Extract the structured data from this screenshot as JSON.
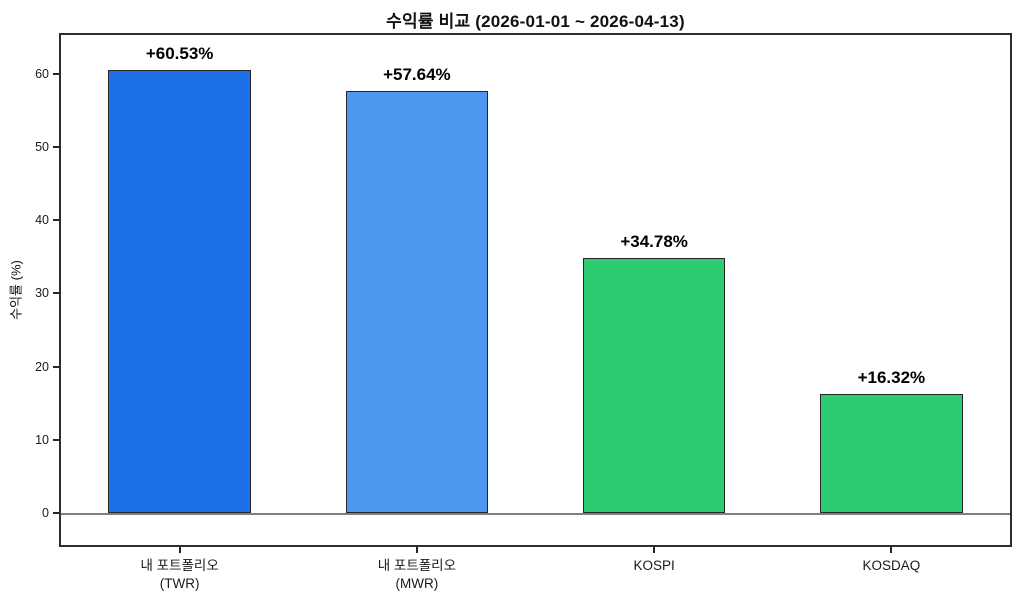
{
  "page": {
    "background": "#ffffff"
  },
  "chart_data": {
    "type": "bar",
    "title": "수익률 비교 (2026-01-01 ~ 2026-04-13)",
    "ylabel": "수익률 (%)",
    "xlabel": "",
    "categories": [
      "내 포트폴리오\n(TWR)",
      "내 포트폴리오\n(MWR)",
      "KOSPI",
      "KOSDAQ"
    ],
    "values": [
      60.53,
      57.64,
      34.78,
      16.32
    ],
    "value_labels": [
      "+60.53%",
      "+57.64%",
      "+34.78%",
      "+16.32%"
    ],
    "bar_colors": [
      "#1E70E8",
      "#4D97F0",
      "#2ECC71",
      "#2ECC71"
    ],
    "bar_edge_color": "#262626",
    "yticks": [
      0,
      10,
      20,
      30,
      40,
      50,
      60
    ],
    "ylim": [
      -4.35,
      65.3
    ],
    "bar_width_fraction": 0.6,
    "grid": false,
    "legend": "none",
    "zero_line_color": "#808080",
    "spine_color": "#2e2e2e"
  }
}
